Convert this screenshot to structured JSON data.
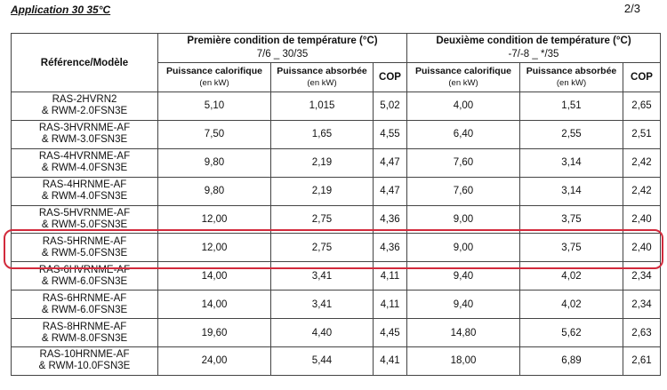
{
  "header": {
    "title": "Application 30  35°C",
    "page": "2/3"
  },
  "table": {
    "ref_header": "Référence/Modèle",
    "cond1": {
      "title": "Première condition de température (°C)",
      "temps": "7/6  _ 30/35"
    },
    "cond2": {
      "title": "Deuxième condition de température (°C)",
      "temps": "-7/-8  _ */35"
    },
    "col_heat": "Puissance calorifique",
    "col_abs": "Puissance absorbée",
    "unit": "(en kW)",
    "col_cop": "COP",
    "rows": [
      {
        "model1": "RAS-2HVRN2",
        "model2": "& RWM-2.0FSN3E",
        "h1": "5,10",
        "a1": "1,015",
        "c1": "5,02",
        "h2": "4,00",
        "a2": "1,51",
        "c2": "2,65"
      },
      {
        "model1": "RAS-3HVRNME-AF",
        "model2": "& RWM-3.0FSN3E",
        "h1": "7,50",
        "a1": "1,65",
        "c1": "4,55",
        "h2": "6,40",
        "a2": "2,55",
        "c2": "2,51"
      },
      {
        "model1": "RAS-4HVRNME-AF",
        "model2": "& RWM-4.0FSN3E",
        "h1": "9,80",
        "a1": "2,19",
        "c1": "4,47",
        "h2": "7,60",
        "a2": "3,14",
        "c2": "2,42"
      },
      {
        "model1": "RAS-4HRNME-AF",
        "model2": "& RWM-4.0FSN3E",
        "h1": "9,80",
        "a1": "2,19",
        "c1": "4,47",
        "h2": "7,60",
        "a2": "3,14",
        "c2": "2,42"
      },
      {
        "model1": "RAS-5HVRNME-AF",
        "model2": "& RWM-5.0FSN3E",
        "h1": "12,00",
        "a1": "2,75",
        "c1": "4,36",
        "h2": "9,00",
        "a2": "3,75",
        "c2": "2,40"
      },
      {
        "model1": "RAS-5HRNME-AF",
        "model2": "& RWM-5.0FSN3E",
        "h1": "12,00",
        "a1": "2,75",
        "c1": "4,36",
        "h2": "9,00",
        "a2": "3,75",
        "c2": "2,40"
      },
      {
        "model1": "RAS-6HVRNME-AF",
        "model2": "& RWM-6.0FSN3E",
        "h1": "14,00",
        "a1": "3,41",
        "c1": "4,11",
        "h2": "9,40",
        "a2": "4,02",
        "c2": "2,34"
      },
      {
        "model1": "RAS-6HRNME-AF",
        "model2": "& RWM-6.0FSN3E",
        "h1": "14,00",
        "a1": "3,41",
        "c1": "4,11",
        "h2": "9,40",
        "a2": "4,02",
        "c2": "2,34"
      },
      {
        "model1": "RAS-8HRNME-AF",
        "model2": "& RWM-8.0FSN3E",
        "h1": "19,60",
        "a1": "4,40",
        "c1": "4,45",
        "h2": "14,80",
        "a2": "5,62",
        "c2": "2,63"
      },
      {
        "model1": "RAS-10HRNME-AF",
        "model2": "& RWM-10.0FSN3E",
        "h1": "24,00",
        "a1": "5,44",
        "c1": "4,41",
        "h2": "18,00",
        "a2": "6,89",
        "c2": "2,61"
      }
    ]
  },
  "highlight_color": "#d22a3c"
}
